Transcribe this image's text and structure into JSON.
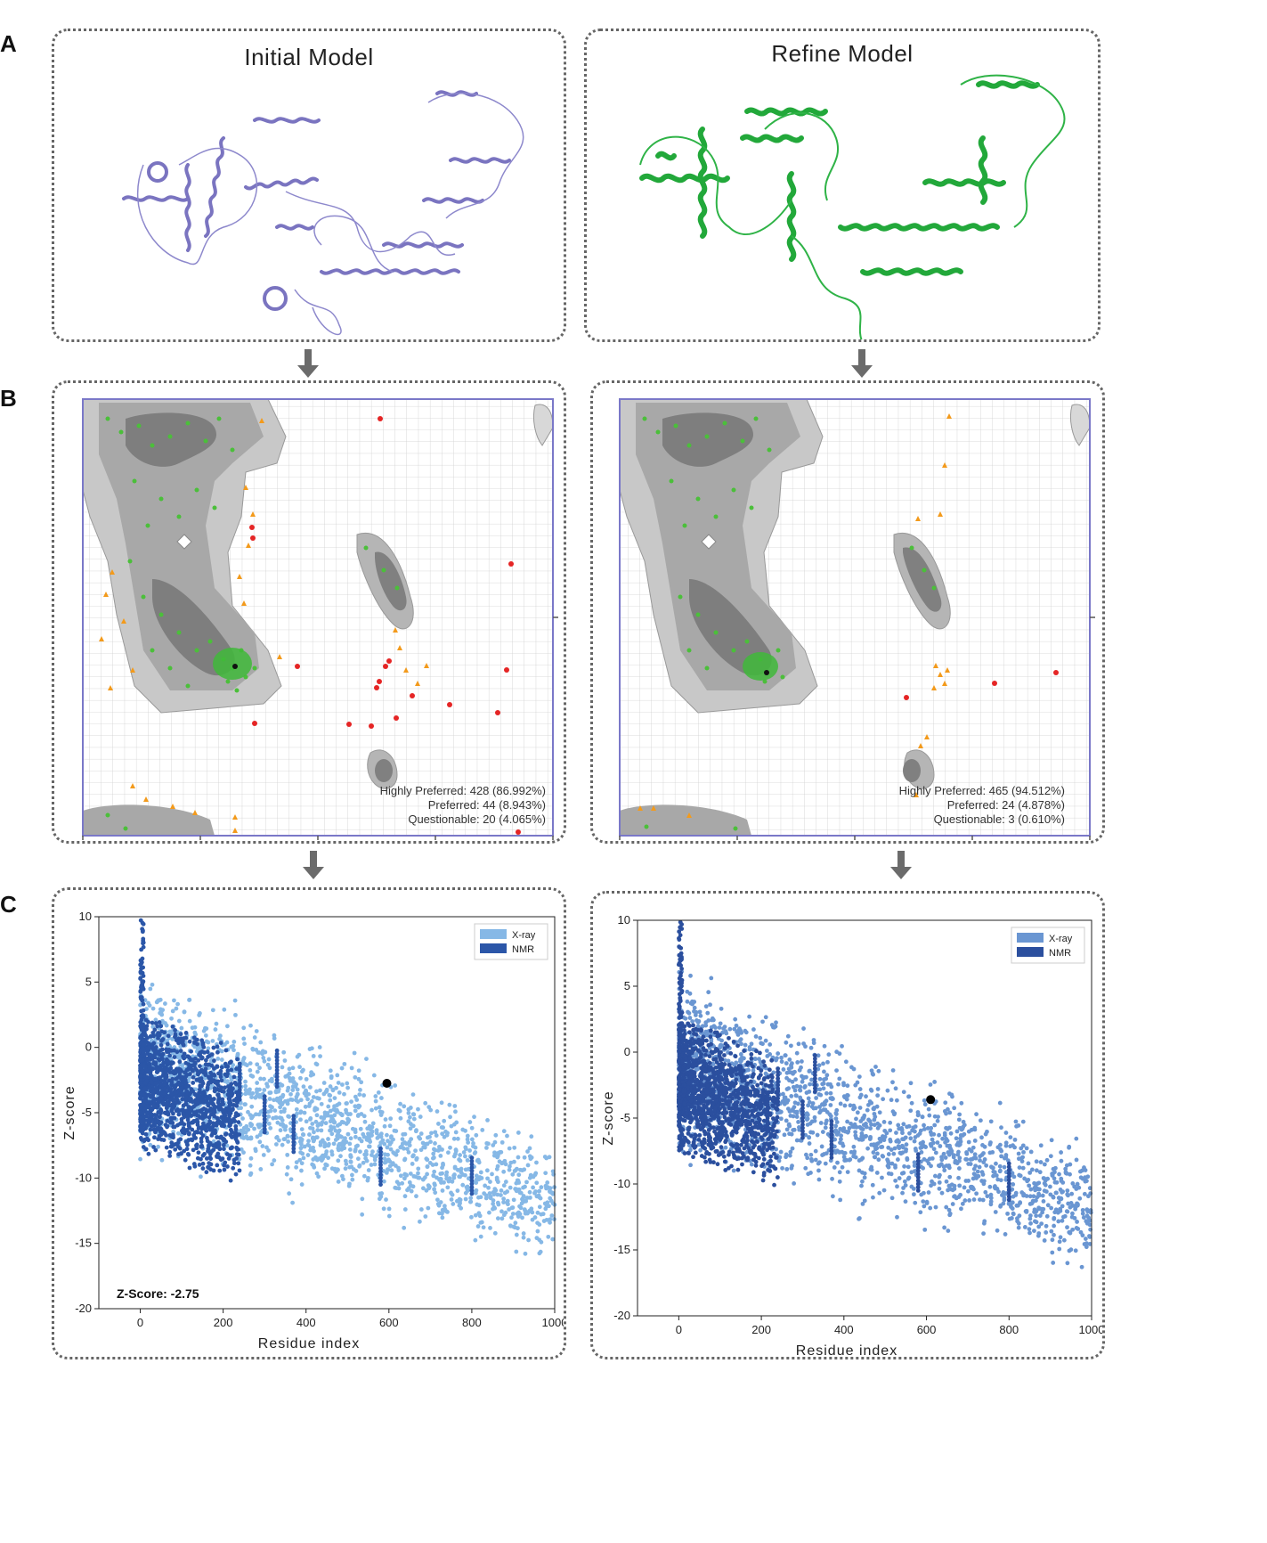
{
  "panel_labels": {
    "a": "A",
    "b": "B",
    "c": "C"
  },
  "models": {
    "initial": {
      "title": "Initial Model",
      "color": "#7a74c0"
    },
    "refine": {
      "title": "Refine Model",
      "color": "#22a83a"
    }
  },
  "ramachandran": {
    "initial": {
      "highly_preferred": "Highly Preferred: 428 (86.992%)",
      "preferred": "Preferred: 44 (8.943%)",
      "questionable": "Questionable: 20 (4.065%)"
    },
    "refine": {
      "highly_preferred": "Highly Preferred: 465 (94.512%)",
      "preferred": "Preferred:  24 (4.878%)",
      "questionable": "Questionable: 3 (0.610%)"
    }
  },
  "chart_data": [
    {
      "type": "scatter",
      "panel": "C-left",
      "xlabel": "Residue index",
      "ylabel": "Z-score",
      "xlim": [
        -100,
        1000
      ],
      "ylim": [
        -20,
        10
      ],
      "xticks": [
        "0",
        "200",
        "400",
        "600",
        "800",
        "1000"
      ],
      "yticks": [
        "10",
        "5",
        "0",
        "-5",
        "-10",
        "-15",
        "-20"
      ],
      "legend": [
        {
          "name": "X-ray",
          "color": "#86b8e6"
        },
        {
          "name": "NMR",
          "color": "#2b56a8"
        }
      ],
      "model_point": {
        "x": 595,
        "y": -2.75
      },
      "annotation": "Z-Score: -2.75"
    },
    {
      "type": "scatter",
      "panel": "C-right",
      "xlabel": "Residue index",
      "ylabel": "Z-score",
      "xlim": [
        -100,
        1000
      ],
      "ylim": [
        -20,
        10
      ],
      "xticks": [
        "0",
        "200",
        "400",
        "600",
        "800",
        "1000"
      ],
      "yticks": [
        "10",
        "5",
        "0",
        "-5",
        "-10",
        "-15",
        "-20"
      ],
      "legend": [
        {
          "name": "X-ray",
          "color": "#6a96d2"
        },
        {
          "name": "NMR",
          "color": "#2b4f9e"
        }
      ],
      "model_point": {
        "x": 610,
        "y": -3.6
      }
    }
  ]
}
